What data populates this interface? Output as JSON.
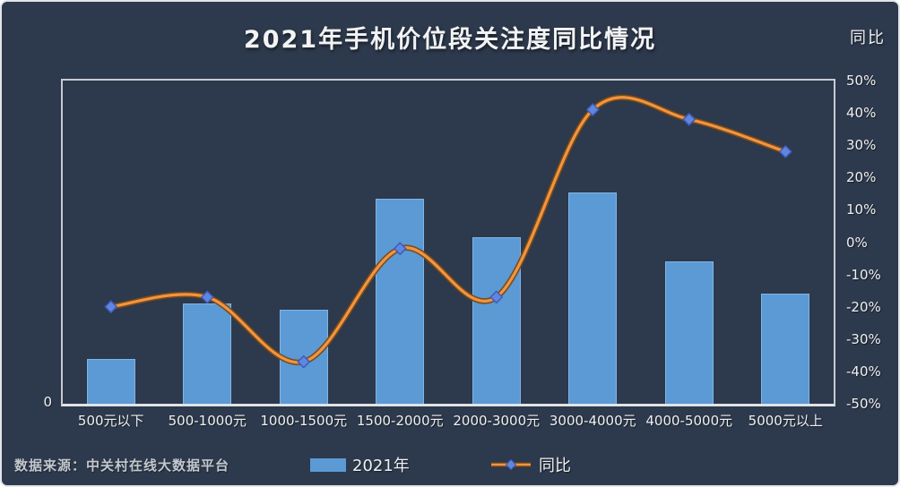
{
  "title": "2021年手机价位段关注度同比情况",
  "right_axis": {
    "title": "同比",
    "ticks": [
      "50%",
      "40%",
      "30%",
      "20%",
      "10%",
      "0%",
      "-10%",
      "-20%",
      "-30%",
      "-40%",
      "-50%"
    ],
    "max": 50,
    "min": -50
  },
  "left_axis": {
    "visible_label": "0"
  },
  "source_note": "数据来源：中关村在线大数据平台",
  "legend": {
    "position": "bottom",
    "items": [
      {
        "label": "2021年",
        "marker": "bar-swatch"
      },
      {
        "label": "同比",
        "marker": "line-with-diamond"
      }
    ]
  },
  "colors": {
    "background": "#2d394c",
    "bar_fill": "#5b9ad5",
    "line_inner": "#f29441",
    "line_outer": "#7a4b16",
    "marker_fill": "#6186dc",
    "marker_edge": "#3b5cc0",
    "frame": "#c6cbd1",
    "text": "#eef0f2",
    "muted_text": "#c2c8ce"
  },
  "chart_data": {
    "type": "combo-bar-line",
    "title": "2021年手机价位段关注度同比情况",
    "categories": [
      "500元以下",
      "500-1000元",
      "1000-1500元",
      "1500-2000元",
      "2000-3000元",
      "3000-4000元",
      "4000-5000元",
      "5000元以上"
    ],
    "series": [
      {
        "name": "2021年",
        "type": "bar",
        "axis": "left",
        "unit": "relative-height-percent-of-plot (left axis unlabeled, only 0 shown)",
        "values": [
          14,
          31,
          29,
          63.5,
          51.5,
          65.5,
          44,
          34
        ]
      },
      {
        "name": "同比",
        "type": "line",
        "axis": "right",
        "unit": "%",
        "values": [
          -20,
          -17,
          -37,
          -2,
          -17,
          41,
          38,
          28
        ]
      }
    ],
    "right_axis_range": [
      -50,
      50
    ],
    "grid": false,
    "legend_position": "bottom"
  }
}
